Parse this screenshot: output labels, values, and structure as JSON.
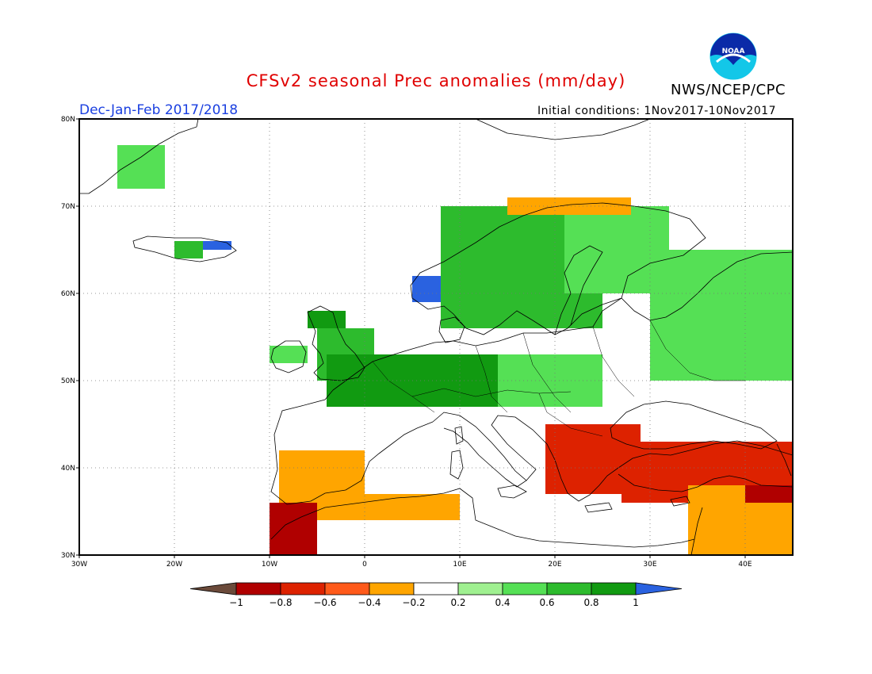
{
  "title": "CFSv2 seasonal Prec anomalies (mm/day)",
  "agency": "NWS/NCEP/CPC",
  "logo_text": "NOAA",
  "season": "Dec-Jan-Feb 2017/2018",
  "initial_conditions": "Initial conditions: 1Nov2017-10Nov2017",
  "lat_ticks": [
    {
      "value": 80,
      "label": "80N"
    },
    {
      "value": 70,
      "label": "70N"
    },
    {
      "value": 60,
      "label": "60N"
    },
    {
      "value": 50,
      "label": "50N"
    },
    {
      "value": 40,
      "label": "40N"
    },
    {
      "value": 30,
      "label": "30N"
    }
  ],
  "lon_ticks": [
    {
      "value": -30,
      "label": "30W"
    },
    {
      "value": -20,
      "label": "20W"
    },
    {
      "value": -10,
      "label": "10W"
    },
    {
      "value": 0,
      "label": "0"
    },
    {
      "value": 10,
      "label": "10E"
    },
    {
      "value": 20,
      "label": "20E"
    },
    {
      "value": 30,
      "label": "30E"
    },
    {
      "value": 40,
      "label": "40E"
    }
  ],
  "chart_data": {
    "type": "heatmap",
    "variable": "Prec anomalies (mm/day)",
    "lon_range": [
      -30,
      45
    ],
    "lat_range": [
      30,
      80
    ],
    "grid": true,
    "legend_placement": "bottom",
    "colorbar": {
      "levels": [
        -1,
        -0.8,
        -0.6,
        -0.4,
        -0.2,
        0.2,
        0.4,
        0.6,
        0.8,
        1
      ],
      "labels": [
        "−1",
        "−0.8",
        "−0.6",
        "−0.4",
        "−0.2",
        "0.2",
        "0.4",
        "0.6",
        "0.8",
        "1"
      ],
      "colors": [
        "#6b4a3a",
        "#b00000",
        "#dd2200",
        "#ff5a1a",
        "#ffa500",
        "#ffffff",
        "#9ff090",
        "#55e055",
        "#2dbb2d",
        "#119a11",
        "#2a62e0"
      ]
    },
    "regions": [
      {
        "name": "Greenland",
        "class": 0.4,
        "lon": [
          -26,
          -21
        ],
        "lat": [
          72,
          77
        ]
      },
      {
        "name": "Iceland west",
        "class": 0.6,
        "lon": [
          -20,
          -17
        ],
        "lat": [
          64,
          66
        ]
      },
      {
        "name": "Iceland east",
        "class": 1,
        "lon": [
          -17,
          -14
        ],
        "lat": [
          65,
          66
        ]
      },
      {
        "name": "Scotland",
        "class": 0.8,
        "lon": [
          -6,
          -2
        ],
        "lat": [
          56,
          58
        ]
      },
      {
        "name": "Ireland",
        "class": 0.4,
        "lon": [
          -10,
          -6
        ],
        "lat": [
          52,
          54
        ]
      },
      {
        "name": "England",
        "class": 0.6,
        "lon": [
          -5,
          1
        ],
        "lat": [
          50,
          56
        ]
      },
      {
        "name": "Western Norway",
        "class": 1,
        "lon": [
          5,
          9
        ],
        "lat": [
          59,
          62
        ]
      },
      {
        "name": "Scandinavia",
        "class": 0.6,
        "lon": [
          8,
          25
        ],
        "lat": [
          56,
          70
        ]
      },
      {
        "name": "Finland",
        "class": 0.4,
        "lon": [
          21,
          32
        ],
        "lat": [
          60,
          70
        ]
      },
      {
        "name": "Western Russia",
        "class": 0.4,
        "lon": [
          30,
          45
        ],
        "lat": [
          50,
          65
        ]
      },
      {
        "name": "Benelux/France/Germany",
        "class": 0.8,
        "lon": [
          -4,
          14
        ],
        "lat": [
          47,
          53
        ]
      },
      {
        "name": "Central Europe",
        "class": 0.4,
        "lon": [
          14,
          25
        ],
        "lat": [
          47,
          53
        ]
      },
      {
        "name": "Northern Norway coast",
        "class": -0.4,
        "lon": [
          15,
          28
        ],
        "lat": [
          69,
          71
        ]
      },
      {
        "name": "Iberia",
        "class": -0.4,
        "lon": [
          -9,
          0
        ],
        "lat": [
          36,
          42
        ]
      },
      {
        "name": "Morocco",
        "class": -0.8,
        "lon": [
          -10,
          -5
        ],
        "lat": [
          30,
          36
        ]
      },
      {
        "name": "North Africa",
        "class": -0.4,
        "lon": [
          -5,
          10
        ],
        "lat": [
          34,
          37
        ]
      },
      {
        "name": "Balkans/Greece",
        "class": -0.6,
        "lon": [
          19,
          29
        ],
        "lat": [
          37,
          45
        ]
      },
      {
        "name": "Turkey",
        "class": -0.6,
        "lon": [
          27,
          45
        ],
        "lat": [
          36,
          43
        ]
      },
      {
        "name": "Levant/Iraq",
        "class": -0.4,
        "lon": [
          34,
          45
        ],
        "lat": [
          30,
          38
        ]
      },
      {
        "name": "Eastern Turkey",
        "class": -0.8,
        "lon": [
          40,
          45
        ],
        "lat": [
          36,
          38
        ]
      }
    ]
  }
}
